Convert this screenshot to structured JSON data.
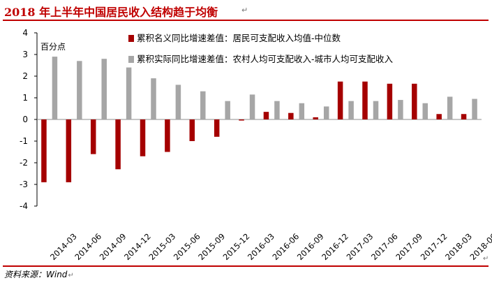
{
  "title": "2018 年上半年中国居民收入结构趋于均衡",
  "source": "资料来源：Wind",
  "paragraph_mark": "↵",
  "colors": {
    "series1": "#a50000",
    "series2": "#a6a6a6",
    "rule": "#c00000"
  },
  "chart_data": {
    "type": "bar",
    "title": "",
    "ylabel": "百分点",
    "xlabel": "",
    "ylim": [
      -4,
      4
    ],
    "yticks": [
      -4,
      -3,
      -2,
      -1,
      0,
      1,
      2,
      3,
      4
    ],
    "legend": "top",
    "grid": false,
    "categories": [
      "2014-03",
      "2014-06",
      "2014-09",
      "2014-12",
      "2015-03",
      "2015-06",
      "2015-09",
      "2015-12",
      "2016-03",
      "2016-06",
      "2016-09",
      "2016-12",
      "2017-03",
      "2017-06",
      "2017-09",
      "2017-12",
      "2018-03",
      "2018-06"
    ],
    "series": [
      {
        "name": "累积名义同比增速差值：居民可支配收入均值-中位数",
        "values": [
          -2.9,
          -2.9,
          -1.6,
          -2.3,
          -1.7,
          -1.5,
          -1.0,
          -0.8,
          -0.05,
          0.35,
          0.3,
          0.1,
          1.75,
          1.75,
          1.65,
          1.65,
          0.25,
          0.25
        ]
      },
      {
        "name": "累积实际同比增速差值：农村人均可支配收入-城市人均可支配收入",
        "values": [
          2.9,
          2.7,
          2.8,
          2.4,
          1.9,
          1.6,
          1.3,
          0.85,
          1.15,
          0.85,
          0.75,
          0.6,
          0.85,
          0.85,
          0.9,
          0.75,
          1.05,
          0.95
        ]
      }
    ]
  }
}
